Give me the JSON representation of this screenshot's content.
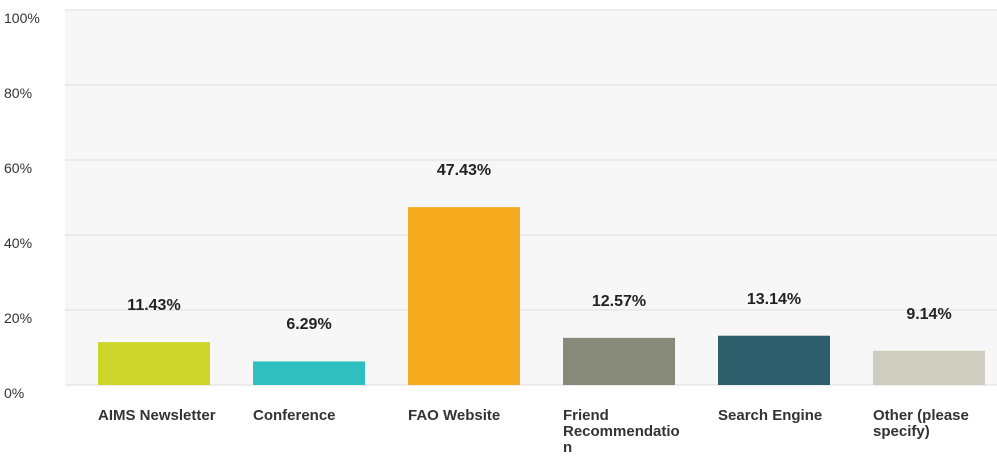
{
  "chart_data": {
    "type": "bar",
    "categories": [
      "AIMS Newsletter",
      "Conference",
      "FAO Website",
      "Friend Recommendation",
      "Search Engine",
      "Other (please specify)"
    ],
    "values": [
      11.43,
      6.29,
      47.43,
      12.57,
      13.14,
      9.14
    ],
    "value_labels": [
      "11.43%",
      "6.29%",
      "47.43%",
      "12.57%",
      "13.14%",
      "9.14%"
    ],
    "colors": [
      "#cdd52a",
      "#2fbfbf",
      "#f5aa1e",
      "#878a78",
      "#2d5e6c",
      "#cfcdbd"
    ],
    "ylim": [
      0,
      100
    ],
    "yticks": [
      {
        "value": 0,
        "label": "0%"
      },
      {
        "value": 20,
        "label": "20%"
      },
      {
        "value": 40,
        "label": "40%"
      },
      {
        "value": 60,
        "label": "60%"
      },
      {
        "value": 80,
        "label": "80%"
      },
      {
        "value": 100,
        "label": "100%"
      }
    ],
    "grid": true
  }
}
